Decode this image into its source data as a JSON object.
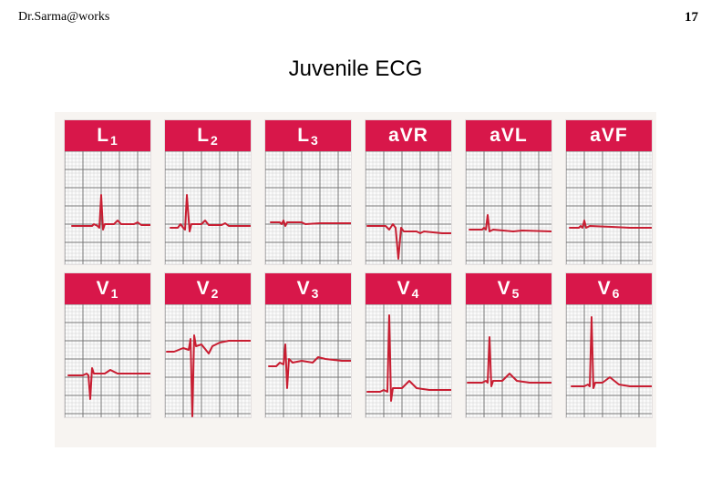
{
  "header": {
    "credit": "Dr.Sarma@works",
    "page_number": "17"
  },
  "slide": {
    "title": "Juvenile ECG"
  },
  "colors": {
    "header_red": "#d8174a",
    "trace_red": "#c81e32",
    "grid_line": "#777777"
  },
  "leads": [
    {
      "id": "L1",
      "name": "L",
      "sub": "1",
      "trace": "L1"
    },
    {
      "id": "L2",
      "name": "L",
      "sub": "2",
      "trace": "L2"
    },
    {
      "id": "L3",
      "name": "L",
      "sub": "3",
      "trace": "L3"
    },
    {
      "id": "aVR",
      "name": "aVR",
      "sub": "",
      "trace": "aVR"
    },
    {
      "id": "aVL",
      "name": "aVL",
      "sub": "",
      "trace": "aVL"
    },
    {
      "id": "aVF",
      "name": "aVF",
      "sub": "",
      "trace": "aVF"
    },
    {
      "id": "V1",
      "name": "V",
      "sub": "1",
      "trace": "V1"
    },
    {
      "id": "V2",
      "name": "V",
      "sub": "2",
      "trace": "V2"
    },
    {
      "id": "V3",
      "name": "V",
      "sub": "3",
      "trace": "V3"
    },
    {
      "id": "V4",
      "name": "V",
      "sub": "4",
      "trace": "V4"
    },
    {
      "id": "V5",
      "name": "V",
      "sub": "5",
      "trace": "V5"
    },
    {
      "id": "V6",
      "name": "V",
      "sub": "6",
      "trace": "V6"
    }
  ]
}
